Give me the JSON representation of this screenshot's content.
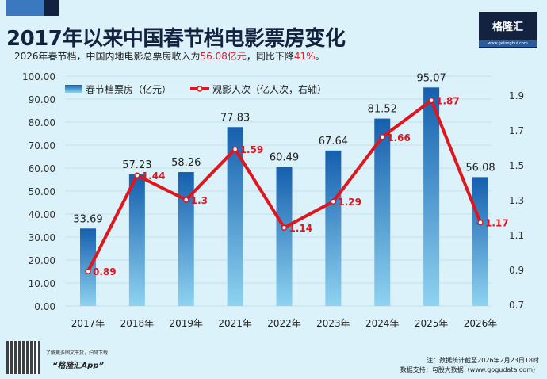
{
  "header": {
    "title": "2017年以来中国春节档电影票房变化",
    "subtitle_pre": "2026年春节档，中国内地电影总票房收入为",
    "subtitle_val1": "56.08亿元",
    "subtitle_mid": "，同比下降",
    "subtitle_val2": "41%",
    "subtitle_post": "。"
  },
  "logo": {
    "name": "格隆汇",
    "url": "www.gelonghui.com"
  },
  "chart_data": {
    "type": "bar+line",
    "categories": [
      "2017年",
      "2018年",
      "2019年",
      "2021年",
      "2022年",
      "2023年",
      "2024年",
      "2025年",
      "2026年"
    ],
    "series": [
      {
        "name": "春节档票房（亿元）",
        "type": "bar",
        "axis": "left",
        "values": [
          33.69,
          57.23,
          58.26,
          77.83,
          60.49,
          67.64,
          81.52,
          95.07,
          56.08
        ],
        "color": "#1a6bb5"
      },
      {
        "name": "观影人次（亿人次，右轴）",
        "type": "line",
        "axis": "right",
        "values": [
          0.89,
          1.44,
          1.3,
          1.59,
          1.14,
          1.29,
          1.66,
          1.87,
          1.17
        ],
        "color": "#e0161e"
      }
    ],
    "left_axis": {
      "ylim": [
        0,
        100
      ],
      "ticks": [
        "0.00",
        "10.00",
        "20.00",
        "30.00",
        "40.00",
        "50.00",
        "60.00",
        "70.00",
        "80.00",
        "90.00",
        "100.00"
      ]
    },
    "right_axis": {
      "ylim": [
        0.7,
        1.9
      ],
      "ticks": [
        "0.7",
        "0.9",
        "1.1",
        "1.3",
        "1.5",
        "1.7",
        "1.9"
      ]
    },
    "grid": true,
    "legend": "top"
  },
  "footer": {
    "qr_caption": "了解更多图文干货，扫码下载",
    "app": "“格隆汇App”",
    "note": "注：数据统计截至2026年2月23日18时",
    "source": "数据支持：勾股大数据（www.gogudata.com）"
  }
}
